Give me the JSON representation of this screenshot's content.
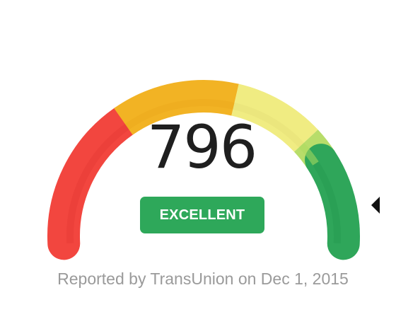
{
  "score": {
    "value": 796,
    "display": "796",
    "range_min": 300,
    "range_max": 850
  },
  "rating": {
    "label": "EXCELLENT",
    "color": "#2ea85a"
  },
  "report": {
    "text": "Reported by TransUnion on Dec 1, 2015"
  },
  "gauge": {
    "segments": [
      {
        "name": "poor",
        "color": "#f2463f",
        "inner": "#e83c36"
      },
      {
        "name": "fair",
        "color": "#f2b324",
        "inner": "#ecaa1d"
      },
      {
        "name": "good",
        "color": "#f0ec82",
        "inner": "#e7e27a"
      },
      {
        "name": "very-good",
        "color": "#b8dd6a",
        "inner": "#addb5f"
      },
      {
        "name": "excellent",
        "color": "#2fa65a",
        "inner": "#279a52"
      }
    ]
  },
  "text_color": "#1f1f1f",
  "muted_color": "#9a9a9a"
}
